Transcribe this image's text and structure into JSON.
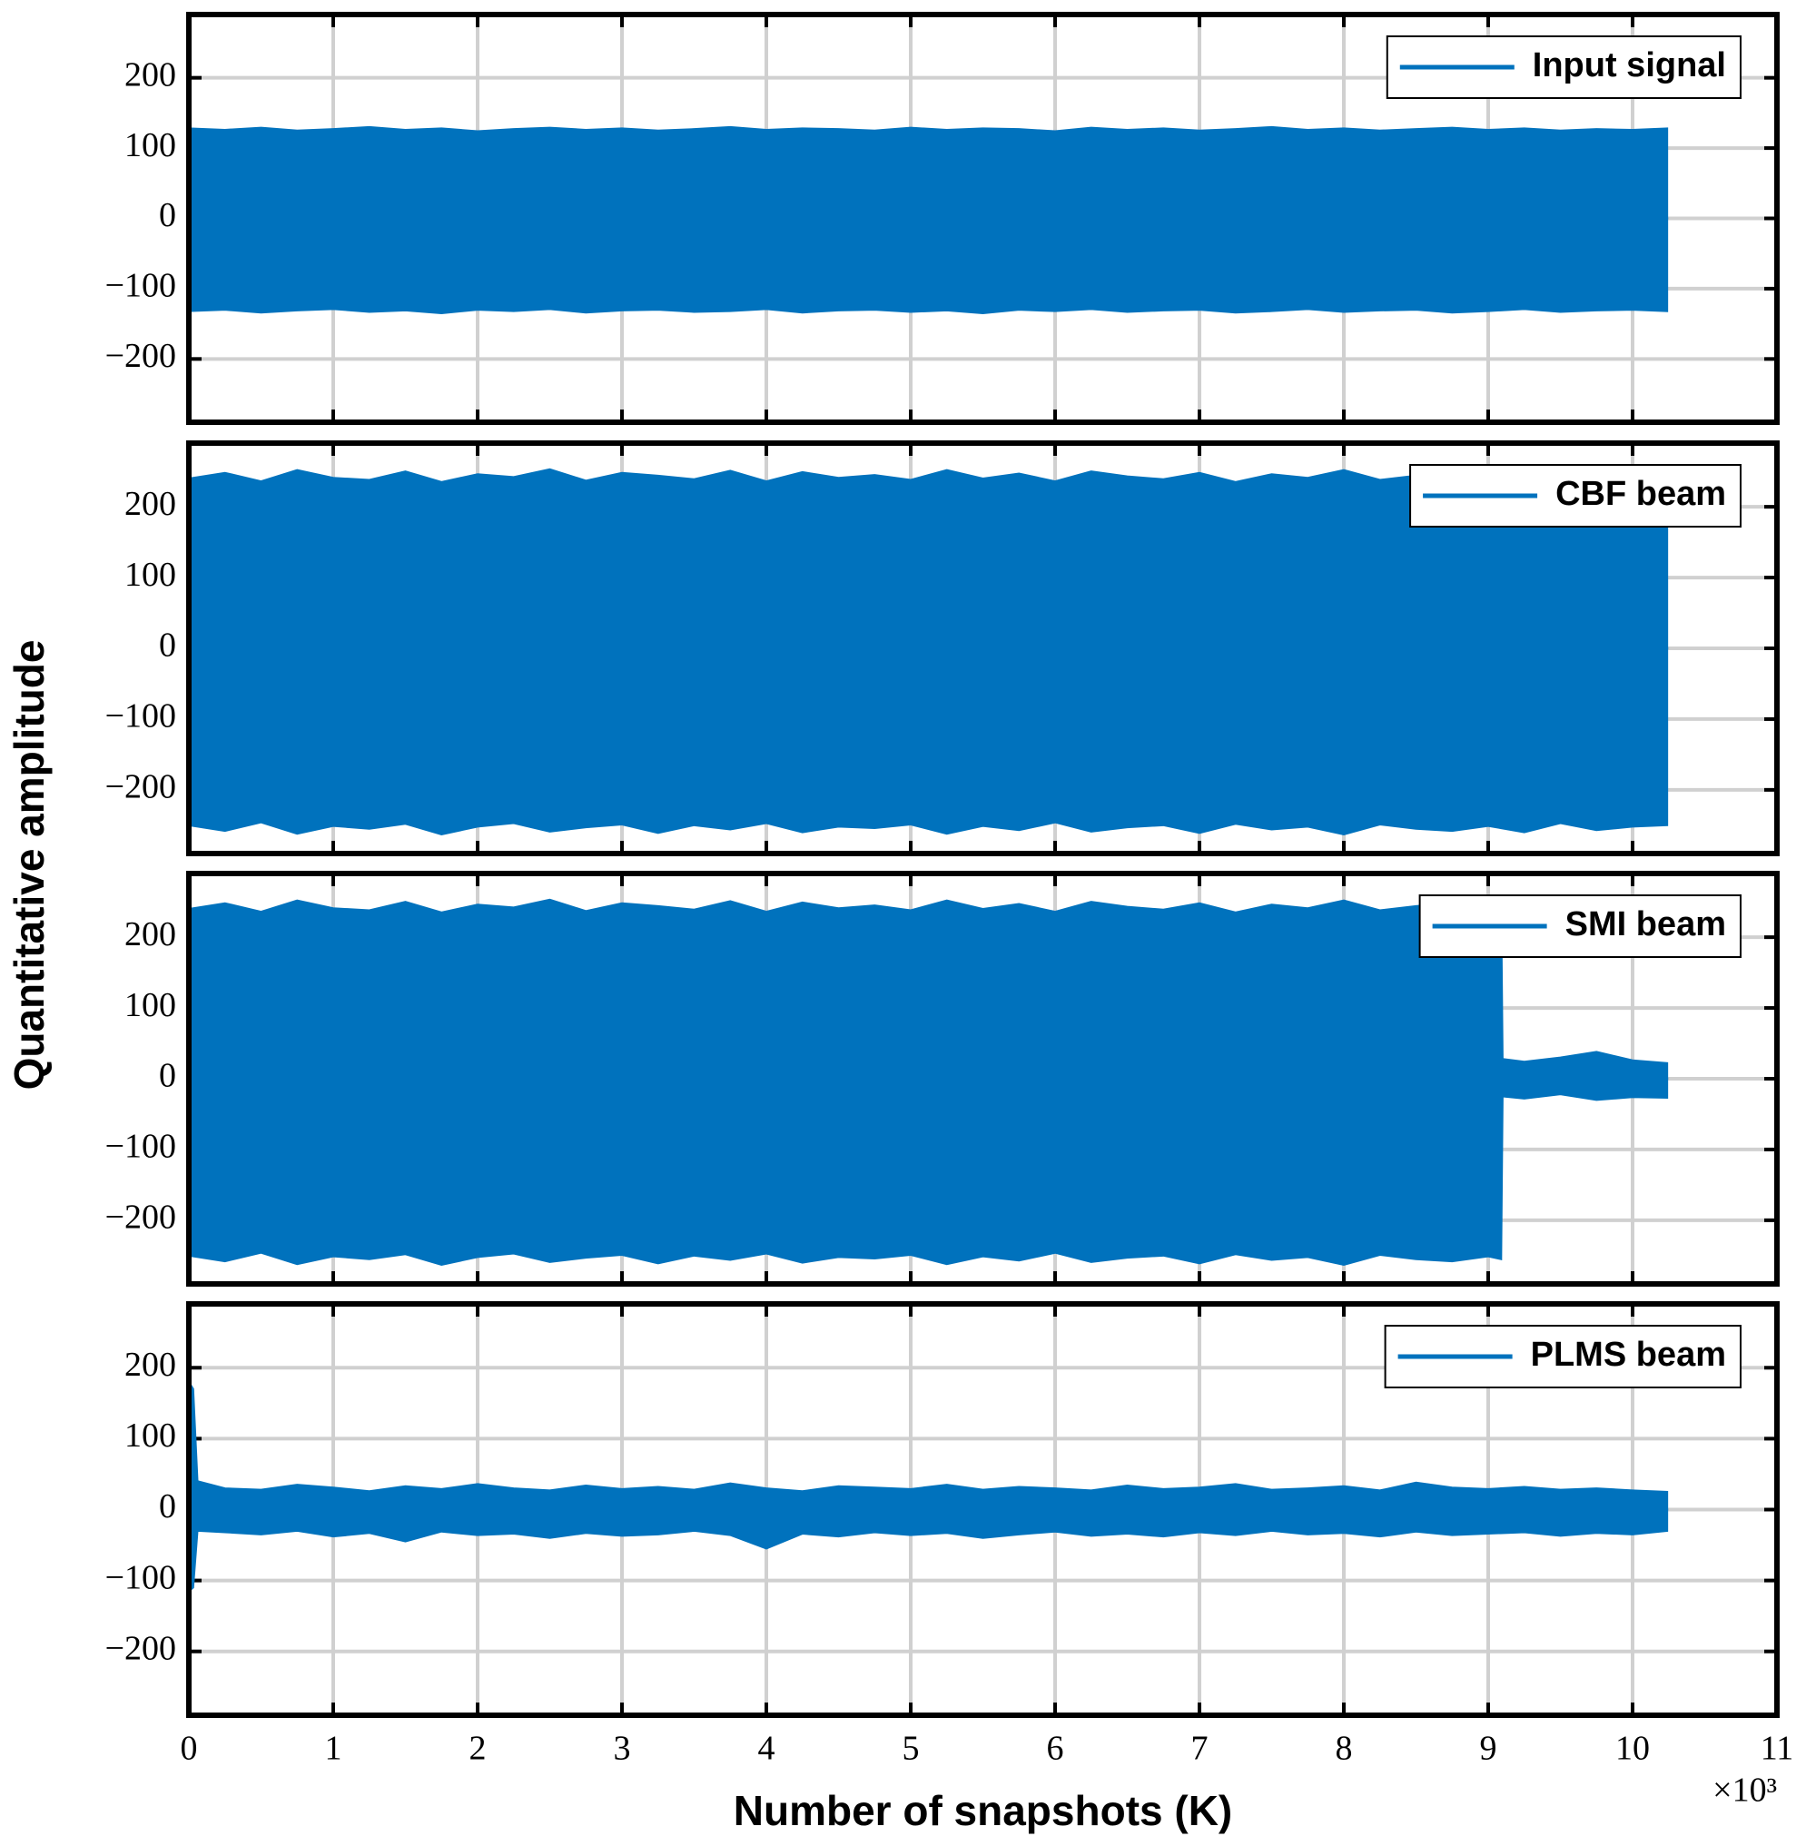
{
  "chart_data": [
    {
      "type": "area",
      "ylabel": "Quantitative amplitude",
      "x": [
        0,
        250,
        500,
        750,
        1000,
        1250,
        1500,
        1750,
        2000,
        2250,
        2500,
        2750,
        3000,
        3250,
        3500,
        3750,
        4000,
        4250,
        4500,
        4750,
        5000,
        5250,
        5500,
        5750,
        6000,
        6250,
        6500,
        6750,
        7000,
        7250,
        7500,
        7750,
        8000,
        8250,
        8500,
        8750,
        9000,
        9250,
        9500,
        9750,
        10000,
        10240
      ],
      "series": [
        {
          "name": "Input signal",
          "color": "#0072bd",
          "upper": [
            128,
            126,
            129,
            125,
            127,
            130,
            126,
            128,
            124,
            127,
            129,
            126,
            128,
            125,
            127,
            130,
            126,
            128,
            127,
            125,
            129,
            126,
            128,
            127,
            124,
            129,
            126,
            128,
            125,
            127,
            130,
            126,
            128,
            125,
            127,
            129,
            126,
            128,
            125,
            127,
            126,
            128
          ],
          "lower": [
            -132,
            -130,
            -134,
            -131,
            -129,
            -133,
            -131,
            -135,
            -130,
            -132,
            -129,
            -134,
            -131,
            -130,
            -133,
            -132,
            -129,
            -134,
            -131,
            -130,
            -133,
            -131,
            -135,
            -130,
            -132,
            -129,
            -133,
            -131,
            -130,
            -134,
            -132,
            -129,
            -133,
            -131,
            -130,
            -134,
            -132,
            -129,
            -133,
            -131,
            -130,
            -132
          ]
        }
      ],
      "xlim": [
        0,
        11000
      ],
      "xticks": [
        0,
        1000,
        2000,
        3000,
        4000,
        5000,
        6000,
        7000,
        8000,
        9000,
        10000,
        11000
      ],
      "ylim": [
        -290,
        290
      ],
      "yticks": [
        {
          "value": -200,
          "label": "−200"
        },
        {
          "value": -100,
          "label": "−100"
        },
        0,
        100,
        200
      ],
      "grid": true,
      "legend": "northeast"
    },
    {
      "type": "area",
      "x": [
        0,
        250,
        500,
        750,
        1000,
        1250,
        1500,
        1750,
        2000,
        2250,
        2500,
        2750,
        3000,
        3250,
        3500,
        3750,
        4000,
        4250,
        4500,
        4750,
        5000,
        5250,
        5500,
        5750,
        6000,
        6250,
        6500,
        6750,
        7000,
        7250,
        7500,
        7750,
        8000,
        8250,
        8500,
        8750,
        9000,
        9250,
        9500,
        9750,
        10000,
        10240
      ],
      "series": [
        {
          "name": "CBF beam",
          "color": "#0072bd",
          "upper": [
            240,
            248,
            236,
            252,
            241,
            238,
            250,
            235,
            246,
            242,
            253,
            237,
            248,
            244,
            239,
            251,
            236,
            249,
            241,
            245,
            238,
            252,
            240,
            247,
            236,
            250,
            243,
            239,
            248,
            235,
            246,
            241,
            252,
            238,
            244,
            249,
            237,
            247,
            242,
            250,
            239,
            235
          ],
          "lower": [
            -250,
            -258,
            -246,
            -262,
            -251,
            -255,
            -248,
            -263,
            -252,
            -247,
            -259,
            -253,
            -249,
            -261,
            -250,
            -256,
            -247,
            -260,
            -252,
            -254,
            -249,
            -262,
            -251,
            -257,
            -246,
            -259,
            -253,
            -250,
            -261,
            -248,
            -256,
            -252,
            -263,
            -249,
            -255,
            -258,
            -251,
            -260,
            -247,
            -257,
            -252,
            -250
          ]
        }
      ],
      "xlim": [
        0,
        11000
      ],
      "xticks": [
        0,
        1000,
        2000,
        3000,
        4000,
        5000,
        6000,
        7000,
        8000,
        9000,
        10000,
        11000
      ],
      "ylim": [
        -290,
        290
      ],
      "yticks": [
        {
          "value": -200,
          "label": "−200"
        },
        {
          "value": -100,
          "label": "−100"
        },
        0,
        100,
        200
      ],
      "grid": true,
      "legend": "northeast"
    },
    {
      "type": "area",
      "x": [
        0,
        250,
        500,
        750,
        1000,
        1250,
        1500,
        1750,
        2000,
        2250,
        2500,
        2750,
        3000,
        3250,
        3500,
        3750,
        4000,
        4250,
        4500,
        4750,
        5000,
        5250,
        5500,
        5750,
        6000,
        6250,
        6500,
        6750,
        7000,
        7250,
        7500,
        7750,
        8000,
        8250,
        8500,
        8750,
        9000,
        9090,
        9100,
        9250,
        9500,
        9750,
        10000,
        10240
      ],
      "series": [
        {
          "name": "SMI beam",
          "color": "#0072bd",
          "upper": [
            240,
            248,
            236,
            252,
            241,
            238,
            250,
            235,
            246,
            242,
            253,
            237,
            248,
            244,
            239,
            251,
            236,
            249,
            241,
            245,
            238,
            252,
            240,
            247,
            236,
            250,
            243,
            239,
            248,
            235,
            246,
            241,
            252,
            238,
            244,
            249,
            237,
            244,
            28,
            24,
            30,
            38,
            26,
            22
          ],
          "lower": [
            -250,
            -258,
            -246,
            -262,
            -251,
            -255,
            -248,
            -263,
            -252,
            -247,
            -259,
            -253,
            -249,
            -261,
            -250,
            -256,
            -247,
            -260,
            -252,
            -254,
            -249,
            -262,
            -251,
            -257,
            -246,
            -259,
            -253,
            -250,
            -261,
            -248,
            -256,
            -252,
            -263,
            -249,
            -255,
            -258,
            -251,
            -255,
            -25,
            -28,
            -22,
            -30,
            -26,
            -27
          ]
        }
      ],
      "xlim": [
        0,
        11000
      ],
      "xticks": [
        0,
        1000,
        2000,
        3000,
        4000,
        5000,
        6000,
        7000,
        8000,
        9000,
        10000,
        11000
      ],
      "ylim": [
        -290,
        290
      ],
      "yticks": [
        {
          "value": -200,
          "label": "−200"
        },
        {
          "value": -100,
          "label": "−100"
        },
        0,
        100,
        200
      ],
      "grid": true,
      "legend": "northeast"
    },
    {
      "type": "area",
      "xlabel": "Number of snapshots (K)",
      "x_multiplier": "×10³",
      "x": [
        0,
        30,
        60,
        250,
        500,
        750,
        1000,
        1250,
        1500,
        1750,
        2000,
        2250,
        2500,
        2750,
        3000,
        3250,
        3500,
        3750,
        4000,
        4250,
        4500,
        4750,
        5000,
        5250,
        5500,
        5750,
        6000,
        6250,
        6500,
        6750,
        7000,
        7250,
        7500,
        7750,
        8000,
        8250,
        8500,
        8750,
        9000,
        9250,
        9500,
        9750,
        10000,
        10240
      ],
      "series": [
        {
          "name": "PLMS beam",
          "color": "#0072bd",
          "upper": [
            180,
            170,
            40,
            30,
            28,
            35,
            31,
            26,
            33,
            29,
            36,
            30,
            27,
            34,
            29,
            32,
            28,
            37,
            30,
            26,
            33,
            31,
            29,
            35,
            28,
            32,
            30,
            27,
            34,
            29,
            31,
            36,
            28,
            30,
            33,
            27,
            38,
            31,
            29,
            32,
            28,
            30,
            27,
            25
          ],
          "lower": [
            -115,
            -110,
            -30,
            -32,
            -35,
            -30,
            -38,
            -33,
            -45,
            -31,
            -36,
            -34,
            -40,
            -33,
            -37,
            -35,
            -30,
            -36,
            -55,
            -34,
            -38,
            -32,
            -36,
            -33,
            -40,
            -35,
            -31,
            -37,
            -34,
            -38,
            -32,
            -36,
            -30,
            -35,
            -33,
            -38,
            -31,
            -36,
            -34,
            -32,
            -37,
            -33,
            -35,
            -30
          ]
        }
      ],
      "xlim": [
        0,
        11000
      ],
      "xticks": [
        {
          "value": 0,
          "label": "0"
        },
        {
          "value": 1000,
          "label": "1"
        },
        {
          "value": 2000,
          "label": "2"
        },
        {
          "value": 3000,
          "label": "3"
        },
        {
          "value": 4000,
          "label": "4"
        },
        {
          "value": 5000,
          "label": "5"
        },
        {
          "value": 6000,
          "label": "6"
        },
        {
          "value": 7000,
          "label": "7"
        },
        {
          "value": 8000,
          "label": "8"
        },
        {
          "value": 9000,
          "label": "9"
        },
        {
          "value": 10000,
          "label": "10"
        },
        {
          "value": 11000,
          "label": "11"
        }
      ],
      "ylim": [
        -290,
        290
      ],
      "yticks": [
        {
          "value": -200,
          "label": "−200"
        },
        {
          "value": -100,
          "label": "−100"
        },
        0,
        100,
        200
      ],
      "grid": true,
      "legend": "northeast"
    }
  ]
}
